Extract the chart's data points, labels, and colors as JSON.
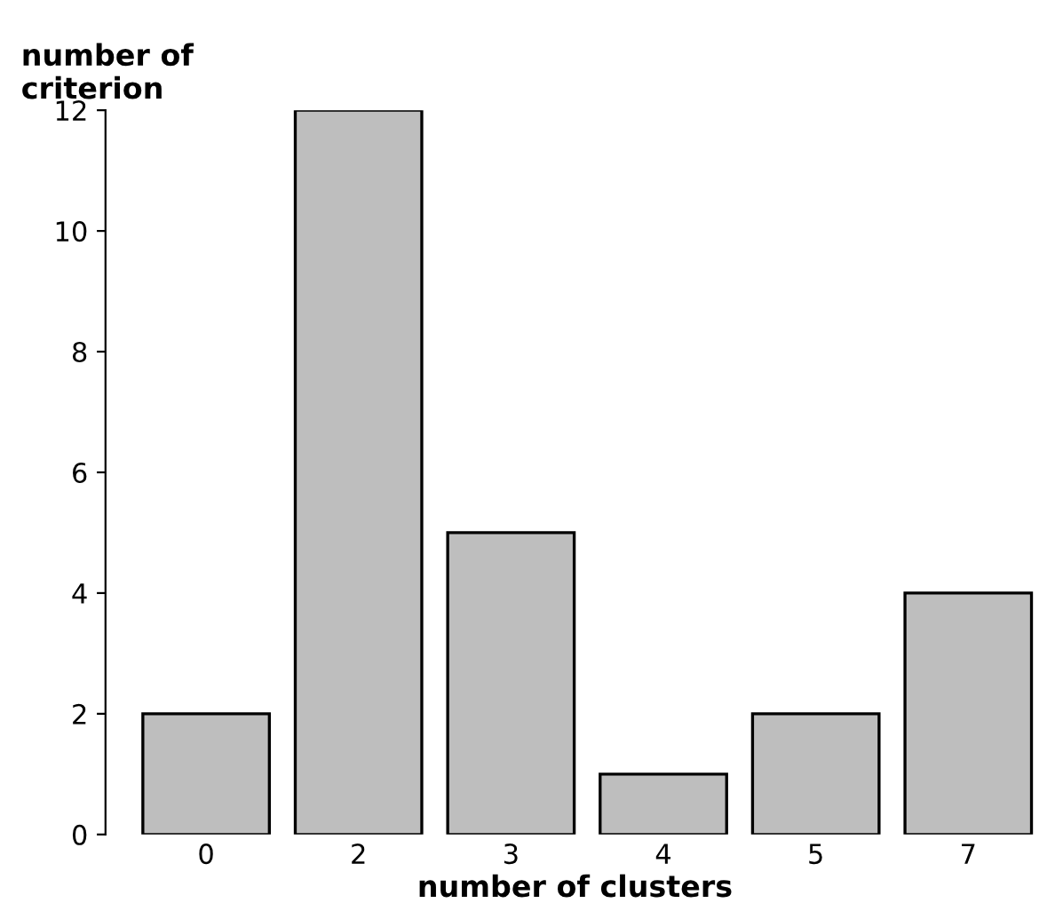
{
  "chart_data": {
    "type": "bar",
    "xlabel": "number of clusters",
    "ylabel": "number of\ncriterion",
    "categories": [
      "0",
      "2",
      "3",
      "4",
      "5",
      "7"
    ],
    "values": [
      2,
      12,
      5,
      1,
      2,
      4
    ],
    "color": "#bebebe",
    "ylim": [
      0,
      12
    ],
    "yticks": [
      0,
      2,
      4,
      6,
      8,
      10,
      12
    ],
    "grid": false
  }
}
